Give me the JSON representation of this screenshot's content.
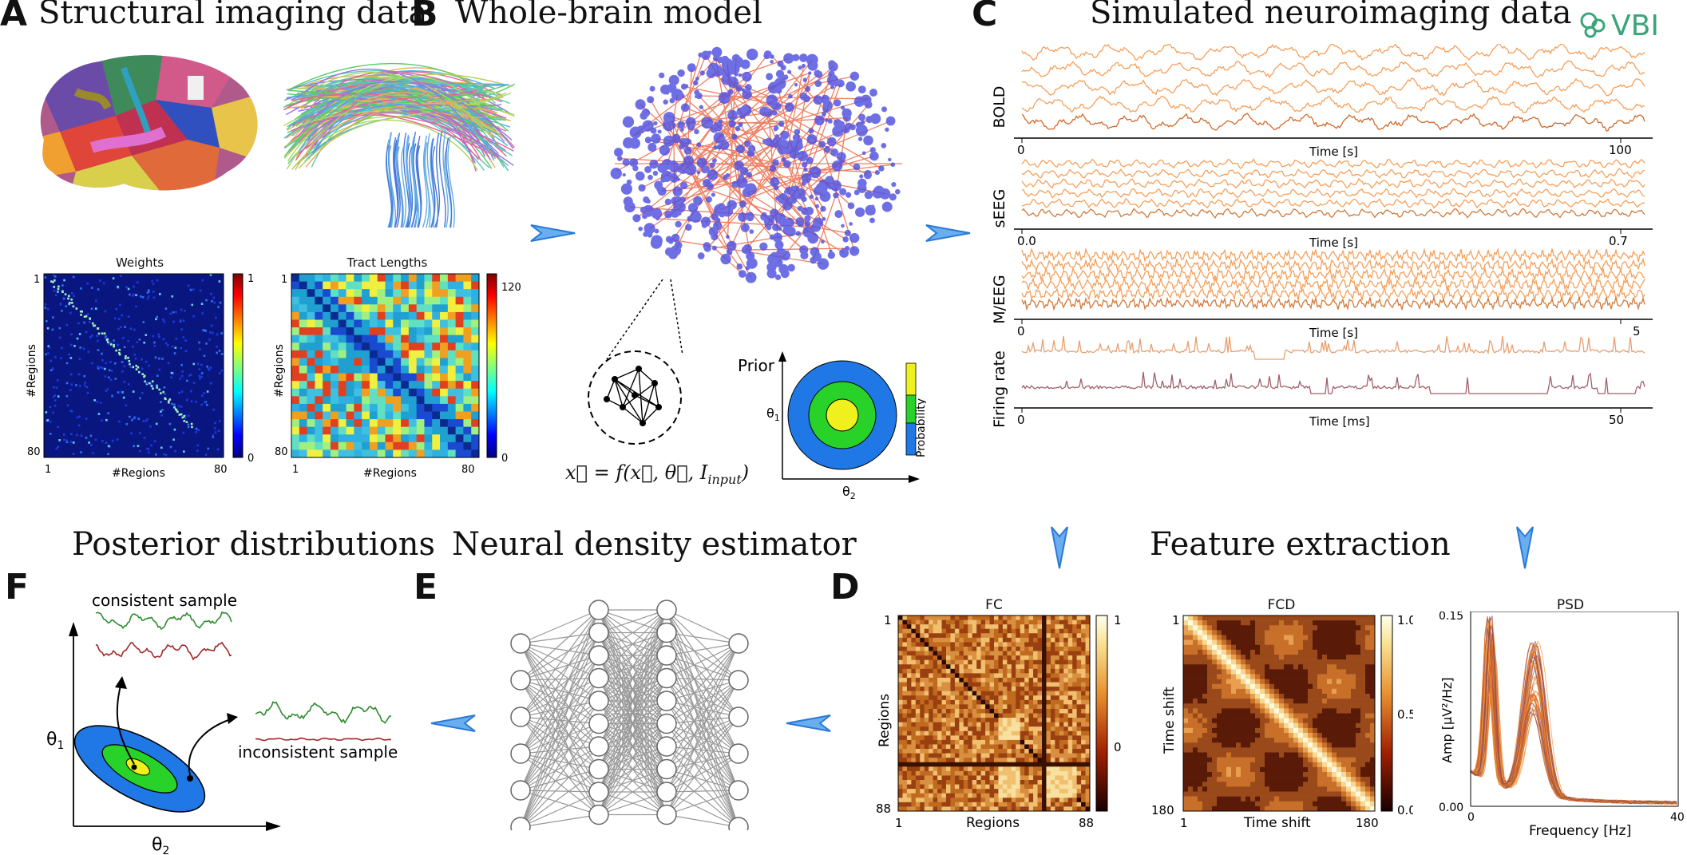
{
  "panels": {
    "A": {
      "letter": "A",
      "title": "Structural imaging data",
      "weights": {
        "title": "Weights",
        "xlabel": "#Regions",
        "ylabel": "#Regions",
        "tick_min": "1",
        "tick_max": "80",
        "cbar_max": "1",
        "cbar_min": "0"
      },
      "tracts": {
        "title": "Tract Lengths",
        "xlabel": "#Regions",
        "ylabel": "#Regions",
        "tick_min": "1",
        "tick_max": "80",
        "cbar_max": "120",
        "cbar_min": "0"
      }
    },
    "B": {
      "letter": "B",
      "title": "Whole-brain model",
      "equation": "x⃗ = f(x⃗, θ⃗, I",
      "equation_sub": "input",
      "prior": {
        "label": "Prior",
        "ylabel": "θ",
        "ylabel_sub": "1",
        "xlabel": "θ",
        "xlabel_sub": "2",
        "cbar_label": "Probability"
      }
    },
    "C": {
      "letter": "C",
      "title": "Simulated neuroimaging data",
      "logo_text": "VBI",
      "traces": [
        {
          "ylabel": "BOLD",
          "xlabel": "Time [s]",
          "x_start": "0",
          "x_end": "100"
        },
        {
          "ylabel": "sEEG",
          "xlabel": "Time [s]",
          "x_start": "0.0",
          "x_end": "0.7"
        },
        {
          "ylabel": "M/EEG",
          "xlabel": "Time [s]",
          "x_start": "0",
          "x_end": "5"
        },
        {
          "ylabel": "Firing rate",
          "xlabel": "Time [ms]",
          "x_start": "0",
          "x_end": "50"
        }
      ]
    },
    "D": {
      "letter": "D",
      "title": "Feature extraction",
      "fc": {
        "title": "FC",
        "xlabel": "Regions",
        "ylabel": "Regions",
        "tick_min": "1",
        "tick_max": "88",
        "cbar_ticks": [
          "1",
          "0"
        ]
      },
      "fcd": {
        "title": "FCD",
        "xlabel": "Time shift",
        "ylabel": "Time shift",
        "tick_min": "1",
        "tick_max": "180",
        "cbar_ticks": [
          "1.0",
          "0.5",
          "0.0"
        ]
      },
      "psd": {
        "title": "PSD",
        "xlabel": "Frequency [Hz]",
        "ylabel": "Amp [μV²/Hz]",
        "x_ticks": [
          "0",
          "40"
        ],
        "y_ticks": [
          "0.15",
          "0.00"
        ]
      }
    },
    "E": {
      "letter": "E",
      "title": "Neural density estimator",
      "layers": [
        6,
        10,
        10,
        6
      ]
    },
    "F": {
      "letter": "F",
      "title": "Posterior distributions",
      "consistent": "consistent sample",
      "inconsistent": "inconsistent sample",
      "ylabel": "θ",
      "ylabel_sub": "1",
      "xlabel": "θ",
      "xlabel_sub": "2"
    }
  },
  "colors": {
    "arrow": "#4a90e2",
    "node": "#5050e0",
    "edge": "#e8613c",
    "trace": "#f08a3c",
    "firing_top": "#e8a070",
    "firing_bottom": "#a0606a",
    "green": "#2e8b2e",
    "red": "#a0282a",
    "prior_outer": "#1f78e6",
    "prior_mid": "#28d228",
    "prior_inner": "#f0f01e",
    "logo": "#3aa57a"
  }
}
